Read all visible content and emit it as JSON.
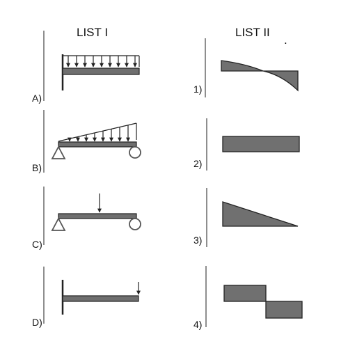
{
  "headers": {
    "list1": "LIST  I",
    "list2": "LIST II",
    "stray_mark": "."
  },
  "list1": [
    {
      "label": "A)",
      "load": "uniformly distributed load",
      "support": "cantilever"
    },
    {
      "label": "B)",
      "load": "triangular load",
      "support": "simply supported"
    },
    {
      "label": "C)",
      "load": "point load at midspan",
      "support": "simply supported"
    },
    {
      "label": "D)",
      "load": "point load at free end",
      "support": "cantilever"
    }
  ],
  "list2": [
    {
      "label": "1)"
    },
    {
      "label": "2)"
    },
    {
      "label": "3)"
    },
    {
      "label": "4)"
    }
  ]
}
